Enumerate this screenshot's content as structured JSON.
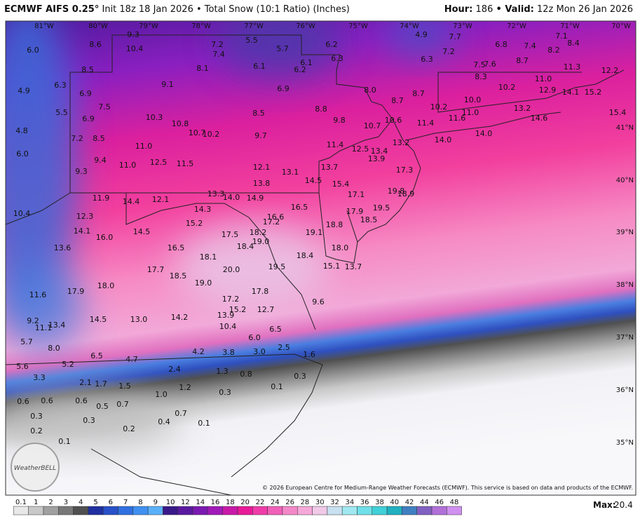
{
  "header": {
    "model": "ECMWF AIFS 0.25°",
    "init": "Init 18z 18 Jan 2026",
    "separator": "•",
    "product": "Total Snow (10:1 Ratio) (Inches)",
    "hour_label": "Hour:",
    "hour": "186",
    "valid_label": "• Valid:",
    "valid": "12z Mon 26 Jan 2026"
  },
  "map": {
    "longitudes": [
      "81°W",
      "80°W",
      "79°W",
      "78°W",
      "77°W",
      "76°W",
      "75°W",
      "74°W",
      "73°W",
      "72°W",
      "71°W",
      "70°W"
    ],
    "latitudes": [
      "41°N",
      "40°N",
      "39°N",
      "38°N",
      "37°N",
      "36°N",
      "35°N"
    ],
    "snow_totals": [
      "9.3",
      "8.6",
      "10.4",
      "6.0",
      "7.2",
      "7.4",
      "5.5",
      "5.7",
      "6.2",
      "6.3",
      "4.9",
      "7.7",
      "7.2",
      "6.8",
      "7.4",
      "7.1",
      "8.4",
      "8.2",
      "8.5",
      "8.1",
      "6.1",
      "6.1",
      "6.2",
      "6.3",
      "8.7",
      "7.5",
      "7.6",
      "11.3",
      "12.2",
      "6.3",
      "4.9",
      "6.9",
      "9.1",
      "6.9",
      "8.0",
      "8.7",
      "8.3",
      "10.2",
      "11.0",
      "14.1",
      "15.2",
      "12.9",
      "5.5",
      "7.5",
      "6.9",
      "10.3",
      "8.5",
      "8.8",
      "8.7",
      "10.2",
      "10.0",
      "11.0",
      "13.2",
      "14.6",
      "15.4",
      "4.8",
      "10.8",
      "10.7",
      "10.2",
      "9.7",
      "9.8",
      "10.7",
      "10.6",
      "11.4",
      "11.6",
      "14.0",
      "14.0",
      "7.2",
      "8.5",
      "11.0",
      "11.4",
      "12.5",
      "13.4",
      "13.9",
      "13.2",
      "6.0",
      "9.4",
      "11.0",
      "12.5",
      "11.5",
      "12.1",
      "13.1",
      "13.7",
      "17.3",
      "9.3",
      "13.8",
      "14.5",
      "15.4",
      "17.1",
      "19.8",
      "18.9",
      "11.9",
      "14.4",
      "12.1",
      "13.3",
      "14.0",
      "14.9",
      "14.3",
      "16.6",
      "16.5",
      "10.4",
      "12.3",
      "15.2",
      "17.2",
      "17.9",
      "19.5",
      "18.5",
      "14.1",
      "16.0",
      "14.5",
      "17.5",
      "18.2",
      "19.1",
      "18.8",
      "19.0",
      "18.4",
      "13.6",
      "16.5",
      "18.1",
      "18.4",
      "18.0",
      "17.7",
      "18.5",
      "20.0",
      "19.5",
      "15.1",
      "13.7",
      "11.6",
      "17.9",
      "18.0",
      "19.0",
      "17.8",
      "17.2",
      "15.2",
      "12.7",
      "9.6",
      "13.9",
      "9.2",
      "14.5",
      "13.0",
      "14.2",
      "10.4",
      "6.5",
      "13.4",
      "11.1",
      "6.0",
      "5.7",
      "8.0",
      "6.5",
      "4.7",
      "4.2",
      "3.8",
      "3.0",
      "2.5",
      "1.6",
      "5.6",
      "5.2",
      "2.4",
      "1.3",
      "0.8",
      "3.3",
      "2.1",
      "1.7",
      "1.5",
      "1.2",
      "0.1",
      "0.3",
      "0.6",
      "0.6",
      "0.6",
      "0.5",
      "0.7",
      "1.0",
      "0.3",
      "0.3",
      "0.3",
      "0.7",
      "0.4",
      "0.1",
      "0.2",
      "0.2",
      "0.1"
    ],
    "logo": "WeatherBELL",
    "credit": "© 2026 European Centre for Medium-Range Weather Forecasts (ECMWF). This service is based on data and products of the ECMWF."
  },
  "legend": {
    "levels": [
      "0.1",
      "1",
      "2",
      "3",
      "4",
      "5",
      "6",
      "7",
      "8",
      "9",
      "10",
      "12",
      "14",
      "16",
      "18",
      "20",
      "22",
      "24",
      "26",
      "28",
      "30",
      "32",
      "34",
      "36",
      "38",
      "40",
      "42",
      "44",
      "46",
      "48"
    ],
    "max_label": "Max:",
    "max": "20.4"
  }
}
